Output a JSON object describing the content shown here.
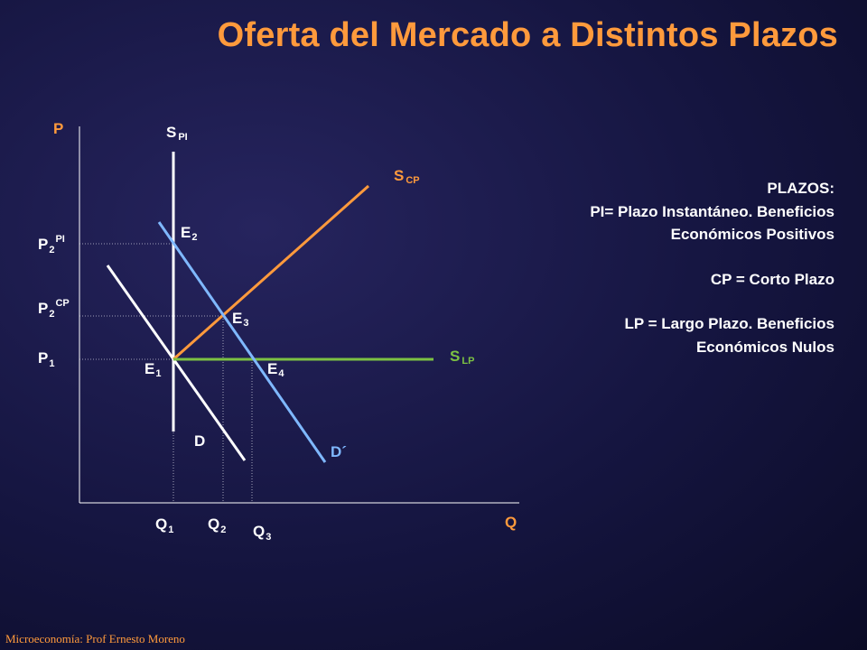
{
  "slide": {
    "title": "Oferta del Mercado a Distintos Plazos",
    "footer": "Microeconomía: Prof Ernesto Moreno"
  },
  "axes": {
    "y_label": "P",
    "x_label": "Q"
  },
  "curves": {
    "s_pi": {
      "main": "S",
      "sub": "PI"
    },
    "s_cp": {
      "main": "S",
      "sub": "CP"
    },
    "s_lp": {
      "main": "S",
      "sub": "LP"
    },
    "d": "D",
    "d_prime": "D´"
  },
  "points": {
    "e1": {
      "main": "E",
      "sub": "1"
    },
    "e2": {
      "main": "E",
      "sub": "2"
    },
    "e3": {
      "main": "E",
      "sub": "3"
    },
    "e4": {
      "main": "E",
      "sub": "4"
    }
  },
  "prices": {
    "p2_pi": {
      "main": "P",
      "sub": "2",
      "sup": "PI"
    },
    "p2_cp": {
      "main": "P",
      "sub": "2",
      "sup": "CP"
    },
    "p1": {
      "main": "P",
      "sub": "1"
    }
  },
  "quantities": {
    "q1": {
      "main": "Q",
      "sub": "1"
    },
    "q2": {
      "main": "Q",
      "sub": "2"
    },
    "q3": {
      "main": "Q",
      "sub": "3"
    }
  },
  "notes": {
    "heading": "PLAZOS:",
    "pi_line1": "PI= Plazo Instantáneo. Beneficios",
    "pi_line2": "Económicos Positivos",
    "cp_line": "CP = Corto Plazo",
    "lp_line1": "LP = Largo Plazo.  Beneficios",
    "lp_line2": "Económicos Nulos"
  },
  "colors": {
    "background": "#151540",
    "title": "#ff9a3c",
    "supply_short_run": "#ff9a3c",
    "supply_long_run": "#7cc243",
    "demand_new": "#7fb8ff",
    "demand_original": "#ffffff",
    "supply_instant": "#ffffff"
  }
}
